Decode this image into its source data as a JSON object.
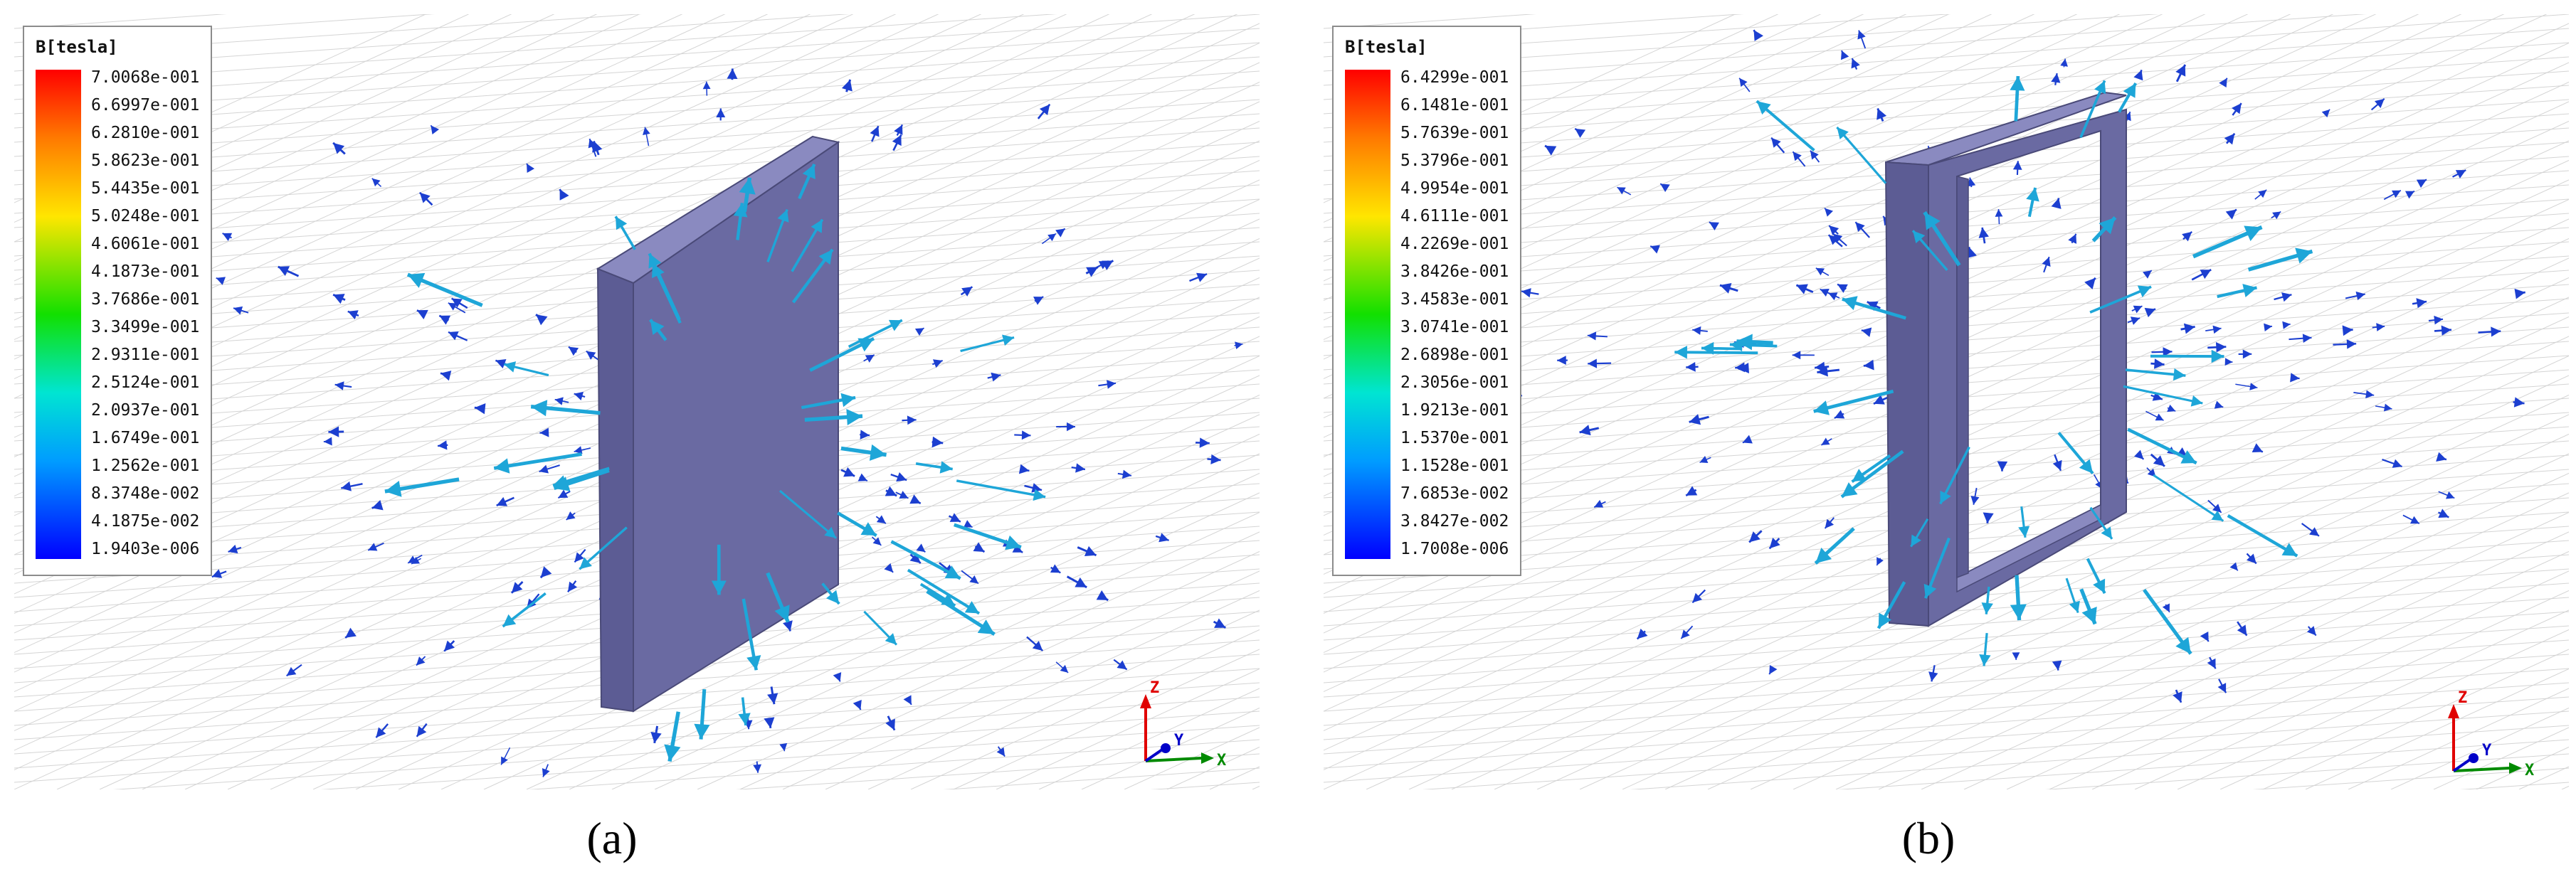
{
  "panels": [
    {
      "id": "a",
      "caption": "(a)",
      "legend": {
        "title": "B[tesla]",
        "ticks": [
          "7.0068e-001",
          "6.6997e-001",
          "6.2810e-001",
          "5.8623e-001",
          "5.4435e-001",
          "5.0248e-001",
          "4.6061e-001",
          "4.1873e-001",
          "3.7686e-001",
          "3.3499e-001",
          "2.9311e-001",
          "2.5124e-001",
          "2.0937e-001",
          "1.6749e-001",
          "1.2562e-001",
          "8.3748e-002",
          "4.1875e-002",
          "1.9403e-006"
        ]
      },
      "object": "solid-plate",
      "axes": {
        "x": "X",
        "y": "Y",
        "z": "Z"
      }
    },
    {
      "id": "b",
      "caption": "(b)",
      "legend": {
        "title": "B[tesla]",
        "ticks": [
          "6.4299e-001",
          "6.1481e-001",
          "5.7639e-001",
          "5.3796e-001",
          "4.9954e-001",
          "4.6111e-001",
          "4.2269e-001",
          "3.8426e-001",
          "3.4583e-001",
          "3.0741e-001",
          "2.6898e-001",
          "2.3056e-001",
          "1.9213e-001",
          "1.5370e-001",
          "1.1528e-001",
          "7.6853e-002",
          "3.8427e-002",
          "1.7008e-006"
        ]
      },
      "object": "rectangular-frame",
      "axes": {
        "x": "X",
        "y": "Y",
        "z": "Z"
      }
    }
  ],
  "colors": {
    "grid": "#d4d4d4",
    "body_front": "#6a6aa2",
    "body_side": "#5c5c94",
    "body_top": "#8a8ac0",
    "vector_strong": "#1ea6d8",
    "vector_weak": "#1c3fd0",
    "axis_x": "#008a00",
    "axis_y": "#0000c8",
    "axis_z": "#e00000"
  }
}
